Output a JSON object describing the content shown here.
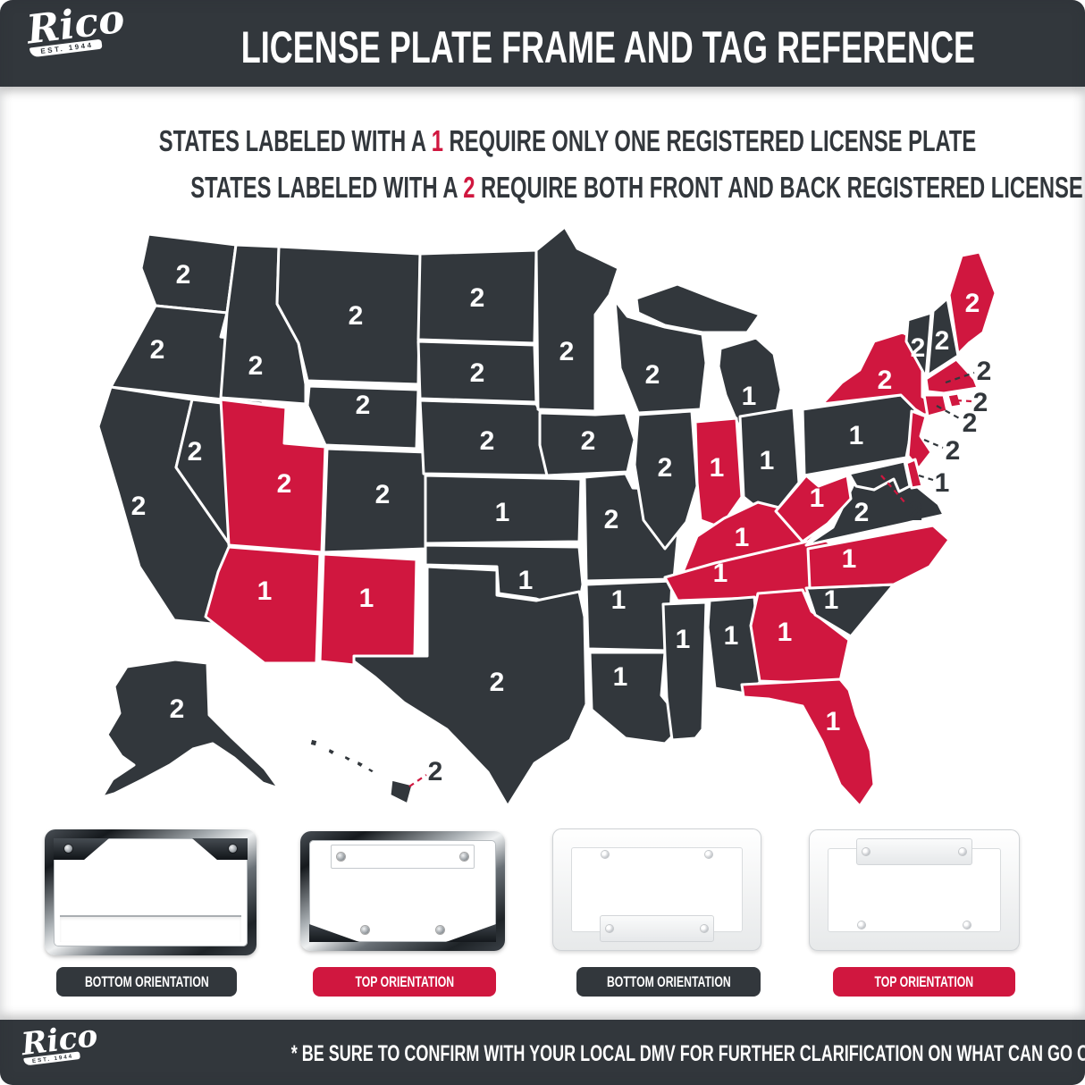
{
  "brand": {
    "logo_text": "Rico",
    "est_text": "EST. 1944"
  },
  "header": {
    "title": "LICENSE PLATE FRAME AND TAG REFERENCE"
  },
  "legend": {
    "line1": {
      "pre": "STATES LABELED WITH A ",
      "num": "1",
      "post": " REQUIRE ONLY ONE REGISTERED LICENSE PLATE"
    },
    "line2": {
      "pre": "STATES LABELED WITH A ",
      "num": "2",
      "post": " REQUIRE BOTH FRONT AND BACK REGISTERED LICENSE PLATES"
    }
  },
  "colors": {
    "charcoal": "#32373c",
    "red": "#d0173f",
    "white": "#ffffff"
  },
  "map": {
    "states": [
      {
        "id": "WA",
        "plates": "2",
        "style": "dark"
      },
      {
        "id": "OR",
        "plates": "2",
        "style": "dark"
      },
      {
        "id": "CA",
        "plates": "2",
        "style": "dark"
      },
      {
        "id": "NV",
        "plates": "2",
        "style": "dark"
      },
      {
        "id": "ID",
        "plates": "2",
        "style": "dark"
      },
      {
        "id": "MT",
        "plates": "2",
        "style": "dark"
      },
      {
        "id": "WY",
        "plates": "2",
        "style": "dark"
      },
      {
        "id": "UT",
        "plates": "2",
        "style": "red"
      },
      {
        "id": "CO",
        "plates": "2",
        "style": "dark"
      },
      {
        "id": "AZ",
        "plates": "1",
        "style": "red"
      },
      {
        "id": "NM",
        "plates": "1",
        "style": "red"
      },
      {
        "id": "ND",
        "plates": "2",
        "style": "dark"
      },
      {
        "id": "SD",
        "plates": "2",
        "style": "dark"
      },
      {
        "id": "NE",
        "plates": "2",
        "style": "dark"
      },
      {
        "id": "KS",
        "plates": "1",
        "style": "dark"
      },
      {
        "id": "OK",
        "plates": "1",
        "style": "dark"
      },
      {
        "id": "TX",
        "plates": "2",
        "style": "dark"
      },
      {
        "id": "MN",
        "plates": "2",
        "style": "dark"
      },
      {
        "id": "IA",
        "plates": "2",
        "style": "dark"
      },
      {
        "id": "MO",
        "plates": "2",
        "style": "dark"
      },
      {
        "id": "AR",
        "plates": "1",
        "style": "dark"
      },
      {
        "id": "LA",
        "plates": "1",
        "style": "dark"
      },
      {
        "id": "WI",
        "plates": "2",
        "style": "dark"
      },
      {
        "id": "MI",
        "plates": "1",
        "style": "dark"
      },
      {
        "id": "IL",
        "plates": "2",
        "style": "dark"
      },
      {
        "id": "IN",
        "plates": "1",
        "style": "red"
      },
      {
        "id": "OH",
        "plates": "1",
        "style": "dark"
      },
      {
        "id": "KY",
        "plates": "1",
        "style": "red"
      },
      {
        "id": "TN",
        "plates": "1",
        "style": "red"
      },
      {
        "id": "MS",
        "plates": "1",
        "style": "dark"
      },
      {
        "id": "AL",
        "plates": "1",
        "style": "dark"
      },
      {
        "id": "GA",
        "plates": "1",
        "style": "red"
      },
      {
        "id": "FL",
        "plates": "1",
        "style": "red"
      },
      {
        "id": "SC",
        "plates": "1",
        "style": "dark"
      },
      {
        "id": "NC",
        "plates": "1",
        "style": "red"
      },
      {
        "id": "VA",
        "plates": "2",
        "style": "dark"
      },
      {
        "id": "WV",
        "plates": "1",
        "style": "red"
      },
      {
        "id": "PA",
        "plates": "1",
        "style": "dark"
      },
      {
        "id": "NY",
        "plates": "2",
        "style": "red"
      },
      {
        "id": "VT",
        "plates": "2",
        "style": "dark"
      },
      {
        "id": "NH",
        "plates": "2",
        "style": "dark"
      },
      {
        "id": "ME",
        "plates": "2",
        "style": "red"
      },
      {
        "id": "MA",
        "plates": "2",
        "style": "red"
      },
      {
        "id": "RI",
        "plates": "2",
        "style": "red"
      },
      {
        "id": "CT",
        "plates": "2",
        "style": "red"
      },
      {
        "id": "NJ",
        "plates": "2",
        "style": "red"
      },
      {
        "id": "DE",
        "plates": "1",
        "style": "red"
      },
      {
        "id": "MD",
        "plates": "2",
        "style": "dark"
      },
      {
        "id": "AK",
        "plates": "2",
        "style": "dark"
      },
      {
        "id": "HI",
        "plates": "2",
        "style": "dark"
      }
    ]
  },
  "frames": [
    {
      "label": "BOTTOM ORIENTATION",
      "style": "dark",
      "type": "chrome-bottom"
    },
    {
      "label": "TOP ORIENTATION",
      "style": "red",
      "type": "chrome-top"
    },
    {
      "label": "BOTTOM ORIENTATION",
      "style": "dark",
      "type": "white-bottom"
    },
    {
      "label": "TOP ORIENTATION",
      "style": "red",
      "type": "white-top"
    }
  ],
  "footer": {
    "note": "* BE SURE TO CONFIRM WITH YOUR LOCAL DMV FOR FURTHER CLARIFICATION ON WHAT CAN GO ON YOUR VEHICLE *"
  }
}
